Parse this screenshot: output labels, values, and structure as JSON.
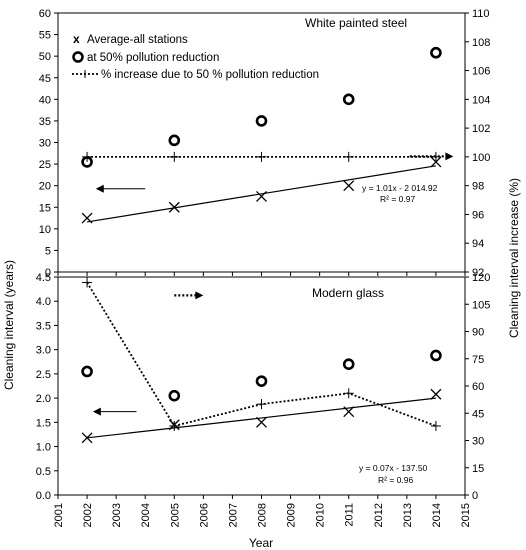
{
  "chart_data": [
    {
      "type": "scatter",
      "title": "White painted steel",
      "xlabel": "",
      "ylabel": "Cleaning interval (years)",
      "y2label": "Cleaning interval increase (%)",
      "xlim": [
        2001,
        2015
      ],
      "ylim": [
        0,
        60
      ],
      "y2lim": [
        92,
        110
      ],
      "grid": false,
      "legend": "top",
      "series": [
        {
          "name": "Average-all stations",
          "marker": "x",
          "axis": "left",
          "x": [
            2002,
            2005,
            2008,
            2011,
            2014
          ],
          "y": [
            12.5,
            15.0,
            17.5,
            20.0,
            25.5
          ]
        },
        {
          "name": "at 50% pollution reduction",
          "marker": "circle",
          "axis": "left",
          "x": [
            2002,
            2005,
            2008,
            2011,
            2014
          ],
          "y": [
            25.5,
            30.5,
            35.0,
            40.0,
            50.8
          ]
        },
        {
          "name": "% increase due to 50 % pollution reduction",
          "marker": "plus-dotted",
          "axis": "right",
          "x": [
            2002,
            2005,
            2008,
            2011,
            2014
          ],
          "y": [
            100,
            100,
            100,
            100,
            100
          ]
        }
      ],
      "trendline": {
        "axis": "left",
        "x": [
          2002,
          2014
        ],
        "y": [
          11.6,
          24.6
        ]
      },
      "annotations": [
        "y = 1.01x - 2 014.92",
        "R² = 0.97"
      ],
      "arrows": [
        {
          "direction": "left",
          "style": "solid",
          "axis": "left",
          "x_from": 2004.0,
          "x_to": 2002.3,
          "y": 19.3
        },
        {
          "direction": "right",
          "style": "dotted",
          "axis": "left",
          "x_from": 2013.1,
          "x_to": 2014.6,
          "y": 26.8
        }
      ]
    },
    {
      "type": "scatter",
      "title": "Modern glass",
      "xlabel": "Year",
      "ylabel": "Cleaning interval (years)",
      "y2label": "Cleaning interval increase (%)",
      "xlim": [
        2001,
        2015
      ],
      "ylim": [
        0,
        4.5
      ],
      "y2lim": [
        0,
        120
      ],
      "grid": false,
      "series": [
        {
          "name": "Average-all stations",
          "marker": "x",
          "axis": "left",
          "x": [
            2002,
            2005,
            2008,
            2011,
            2014
          ],
          "y": [
            1.18,
            1.45,
            1.5,
            1.72,
            2.08
          ]
        },
        {
          "name": "at 50% pollution reduction",
          "marker": "circle",
          "axis": "left",
          "x": [
            2002,
            2005,
            2008,
            2011,
            2014
          ],
          "y": [
            2.55,
            2.05,
            2.35,
            2.7,
            2.88
          ]
        },
        {
          "name": "% increase due to 50 % pollution reduction",
          "marker": "plus-dotted",
          "axis": "right",
          "x": [
            2002,
            2005,
            2008,
            2011,
            2014
          ],
          "y": [
            117,
            38,
            50,
            56,
            38
          ]
        }
      ],
      "trendline": {
        "axis": "left",
        "x": [
          2002,
          2014
        ],
        "y": [
          1.18,
          2.0
        ]
      },
      "annotations": [
        "y = 0.07x - 137.50",
        "R² = 0.96"
      ],
      "arrows": [
        {
          "direction": "left",
          "style": "solid",
          "axis": "left",
          "x_from": 2003.7,
          "x_to": 2002.2,
          "y": 1.72
        },
        {
          "direction": "right",
          "style": "dotted",
          "axis": "left",
          "x_from": 2005.0,
          "x_to": 2006.0,
          "y": 4.12
        }
      ]
    }
  ],
  "x_ticks": [
    "2001",
    "2002",
    "2003",
    "2004",
    "2005",
    "2006",
    "2007",
    "2008",
    "2009",
    "2010",
    "2011",
    "2012",
    "2013",
    "2014",
    "2015"
  ],
  "top_left_ticks": [
    "0",
    "5",
    "10",
    "15",
    "20",
    "25",
    "30",
    "35",
    "40",
    "45",
    "50",
    "55",
    "60"
  ],
  "top_right_ticks": [
    "92",
    "94",
    "96",
    "98",
    "100",
    "102",
    "104",
    "106",
    "108",
    "110"
  ],
  "bottom_left_ticks": [
    "0.0",
    "0.5",
    "1.0",
    "1.5",
    "2.0",
    "2.5",
    "3.0",
    "3.5",
    "4.0",
    "4.5"
  ],
  "bottom_right_ticks": [
    "0",
    "15",
    "30",
    "45",
    "60",
    "75",
    "90",
    "105",
    "120"
  ]
}
